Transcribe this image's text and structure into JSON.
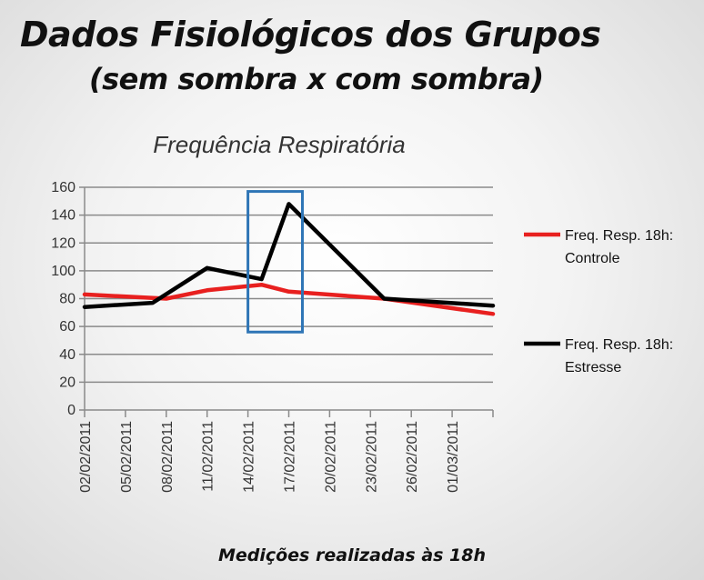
{
  "slide": {
    "title": "Dados Fisiológicos dos Grupos",
    "subtitle": "(sem sombra x com sombra)"
  },
  "chart_data": {
    "type": "line",
    "title": "Frequência Respiratória",
    "xlabel": "Medições realizadas às 18h",
    "ylabel": "",
    "ylim": [
      0,
      160
    ],
    "yticks": [
      0,
      20,
      40,
      60,
      80,
      100,
      120,
      140,
      160
    ],
    "xlim": [
      "2011-02-02",
      "2011-03-04"
    ],
    "x_tick_labels": [
      "02/02/2011",
      "05/02/2011",
      "08/02/2011",
      "11/02/2011",
      "14/02/2011",
      "17/02/2011",
      "20/02/2011",
      "23/02/2011",
      "26/02/2011",
      "01/03/2011"
    ],
    "grid": true,
    "legend_position": "right",
    "series": [
      {
        "name": "Freq. Resp. 18h: Controle",
        "color": "#e8201f",
        "points": [
          {
            "x": "2011-02-02",
            "y": 83
          },
          {
            "x": "2011-02-08",
            "y": 80
          },
          {
            "x": "2011-02-11",
            "y": 86
          },
          {
            "x": "2011-02-15",
            "y": 90
          },
          {
            "x": "2011-02-17",
            "y": 85
          },
          {
            "x": "2011-02-24",
            "y": 80
          },
          {
            "x": "2011-03-04",
            "y": 69
          }
        ]
      },
      {
        "name": "Freq. Resp. 18h: Estresse",
        "color": "#000000",
        "points": [
          {
            "x": "2011-02-02",
            "y": 74
          },
          {
            "x": "2011-02-07",
            "y": 77
          },
          {
            "x": "2011-02-11",
            "y": 102
          },
          {
            "x": "2011-02-15",
            "y": 94
          },
          {
            "x": "2011-02-17",
            "y": 148
          },
          {
            "x": "2011-02-24",
            "y": 80
          },
          {
            "x": "2011-03-04",
            "y": 75
          }
        ]
      }
    ],
    "annotations": [
      {
        "type": "rectangle",
        "color": "#2e75b6",
        "x_range": [
          "2011-02-14",
          "2011-02-18"
        ],
        "y_range": [
          56,
          157
        ]
      }
    ]
  }
}
